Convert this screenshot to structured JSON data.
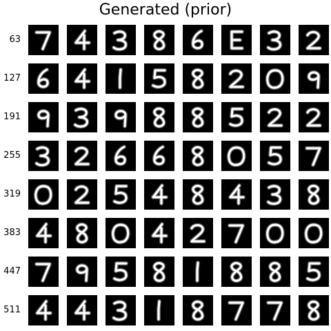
{
  "title": "Generated (prior)",
  "row_labels": [
    "63",
    "127",
    "191",
    "255",
    "319",
    "383",
    "447",
    "511"
  ],
  "grid": [
    [
      "7",
      "4",
      "3",
      "8",
      "6",
      "E",
      "3",
      "2"
    ],
    [
      "6",
      "4",
      "1",
      "5",
      "8",
      "2",
      "0",
      "9"
    ],
    [
      "9",
      "3",
      "9",
      "8",
      "8",
      "5",
      "2",
      "2"
    ],
    [
      "3",
      "2",
      "6",
      "6",
      "8",
      "0",
      "5",
      "7"
    ],
    [
      "0",
      "2",
      "5",
      "4",
      "8",
      "4",
      "3",
      "8"
    ],
    [
      "4",
      "8",
      "0",
      "4",
      "2",
      "7",
      "0",
      "0"
    ],
    [
      "7",
      "9",
      "5",
      "8",
      "1",
      "8",
      "8",
      "5"
    ],
    [
      "4",
      "4",
      "3",
      "1",
      "8",
      "7",
      "7",
      "8"
    ]
  ],
  "colors": {
    "tile": "#000000",
    "stroke": "#ffffff",
    "background": "#ffffff"
  }
}
